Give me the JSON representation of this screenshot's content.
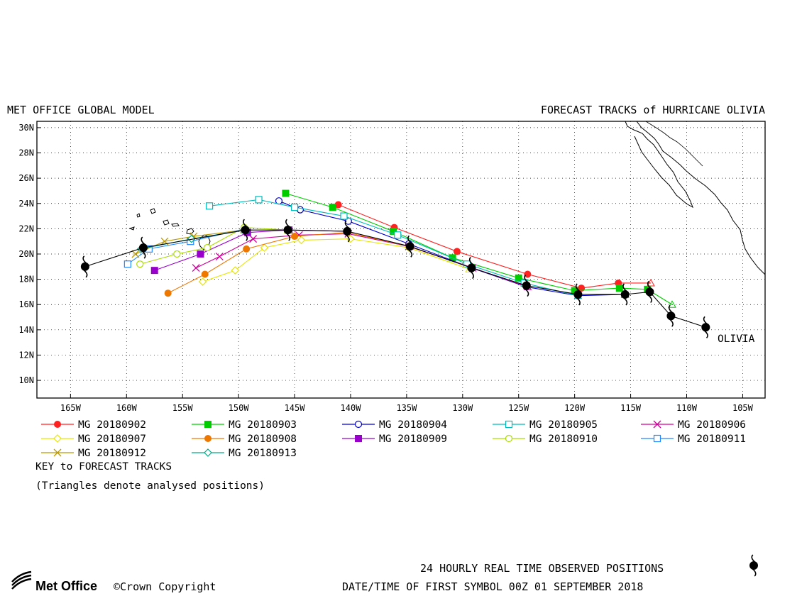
{
  "header": {
    "left": "MET OFFICE GLOBAL MODEL",
    "right": "FORECAST TRACKS of HURRICANE OLIVIA"
  },
  "map": {
    "lon_range": [
      -168,
      -103
    ],
    "lat_range": [
      8.6,
      30.5
    ],
    "lat_ticks": [
      {
        "v": 30,
        "label": "30N"
      },
      {
        "v": 28,
        "label": "28N"
      },
      {
        "v": 26,
        "label": "26N"
      },
      {
        "v": 24,
        "label": "24N"
      },
      {
        "v": 22,
        "label": "22N"
      },
      {
        "v": 20,
        "label": "20N"
      },
      {
        "v": 18,
        "label": "18N"
      },
      {
        "v": 16,
        "label": "16N"
      },
      {
        "v": 14,
        "label": "14N"
      },
      {
        "v": 12,
        "label": "12N"
      },
      {
        "v": 10,
        "label": "10N"
      }
    ],
    "lon_ticks": [
      {
        "v": -165,
        "label": "165W"
      },
      {
        "v": -160,
        "label": "160W"
      },
      {
        "v": -155,
        "label": "155W"
      },
      {
        "v": -150,
        "label": "150W"
      },
      {
        "v": -145,
        "label": "145W"
      },
      {
        "v": -140,
        "label": "140W"
      },
      {
        "v": -135,
        "label": "135W"
      },
      {
        "v": -130,
        "label": "130W"
      },
      {
        "v": -125,
        "label": "125W"
      },
      {
        "v": -120,
        "label": "120W"
      },
      {
        "v": -115,
        "label": "115W"
      },
      {
        "v": -110,
        "label": "110W"
      },
      {
        "v": -105,
        "label": "105W"
      }
    ],
    "storm_label": "OLIVIA",
    "grid": "dotted"
  },
  "observed_track": [
    [
      -108.3,
      14.2
    ],
    [
      -111.4,
      15.1
    ],
    [
      -113.3,
      17.0
    ],
    [
      -115.5,
      16.8
    ],
    [
      -119.7,
      16.8
    ],
    [
      -124.3,
      17.5
    ],
    [
      -129.2,
      18.9
    ],
    [
      -134.7,
      20.6
    ],
    [
      -140.3,
      21.8
    ],
    [
      -145.6,
      21.9
    ],
    [
      -149.4,
      21.9
    ],
    [
      -158.5,
      20.5
    ],
    [
      -163.7,
      19.0
    ]
  ],
  "forecasts": [
    {
      "label": "MG 20180902",
      "color": "#ff2020",
      "marker": "dot",
      "points": [
        [
          -113.2,
          17.7
        ],
        [
          -116.1,
          17.7
        ],
        [
          -119.4,
          17.3
        ],
        [
          -124.2,
          18.4
        ],
        [
          -130.5,
          20.2
        ],
        [
          -136.1,
          22.1
        ],
        [
          -141.1,
          23.9
        ]
      ]
    },
    {
      "label": "MG 20180903",
      "color": "#00cc00",
      "marker": "square",
      "points": [
        [
          -111.3,
          16.0
        ],
        [
          -113.5,
          17.2
        ],
        [
          -116.0,
          17.3
        ],
        [
          -120.0,
          17.1
        ],
        [
          -125.0,
          18.1
        ],
        [
          -130.9,
          19.7
        ],
        [
          -136.2,
          21.8
        ],
        [
          -141.6,
          23.7
        ],
        [
          -145.8,
          24.8
        ]
      ]
    },
    {
      "label": "MG 20180904",
      "color": "#0000cc",
      "marker": "circle",
      "points": [
        [
          -115.5,
          16.8
        ],
        [
          -119.7,
          16.7
        ],
        [
          -124.3,
          17.4
        ],
        [
          -129.2,
          18.9
        ],
        [
          -134.8,
          20.8
        ],
        [
          -140.2,
          22.6
        ],
        [
          -144.5,
          23.5
        ],
        [
          -146.4,
          24.2
        ]
      ]
    },
    {
      "label": "MG 20180905",
      "color": "#00bbbb",
      "marker": "square-open",
      "points": [
        [
          -119.7,
          16.7
        ],
        [
          -124.5,
          17.7
        ],
        [
          -129.6,
          19.2
        ],
        [
          -135.8,
          21.5
        ],
        [
          -140.6,
          23.0
        ],
        [
          -145.0,
          23.7
        ],
        [
          -148.2,
          24.3
        ],
        [
          -152.6,
          23.8
        ]
      ]
    },
    {
      "label": "MG 20180906",
      "color": "#cc0099",
      "marker": "x",
      "points": [
        [
          -124.2,
          17.4
        ],
        [
          -129.1,
          18.9
        ],
        [
          -134.8,
          20.6
        ],
        [
          -140.2,
          21.6
        ],
        [
          -144.6,
          21.5
        ],
        [
          -148.7,
          21.2
        ],
        [
          -151.7,
          19.8
        ],
        [
          -153.8,
          18.9
        ]
      ]
    },
    {
      "label": "MG 20180907",
      "color": "#e6e600",
      "marker": "diamond",
      "points": [
        [
          -129.4,
          18.8
        ],
        [
          -134.8,
          20.5
        ],
        [
          -140.0,
          21.2
        ],
        [
          -144.4,
          21.1
        ],
        [
          -147.7,
          20.5
        ],
        [
          -150.3,
          18.7
        ],
        [
          -153.2,
          17.8
        ]
      ]
    },
    {
      "label": "MG 20180908",
      "color": "#ee7700",
      "marker": "dot",
      "points": [
        [
          -134.7,
          20.6
        ],
        [
          -140.3,
          21.7
        ],
        [
          -145.0,
          21.4
        ],
        [
          -149.3,
          20.4
        ],
        [
          -153.0,
          18.4
        ],
        [
          -156.3,
          16.9
        ]
      ]
    },
    {
      "label": "MG 20180909",
      "color": "#9900cc",
      "marker": "square",
      "points": [
        [
          -140.3,
          21.8
        ],
        [
          -145.5,
          21.9
        ],
        [
          -149.2,
          21.7
        ],
        [
          -153.4,
          20.0
        ],
        [
          -157.5,
          18.7
        ]
      ]
    },
    {
      "label": "MG 20180910",
      "color": "#aadd00",
      "marker": "circle",
      "points": [
        [
          -145.6,
          21.9
        ],
        [
          -149.5,
          22.1
        ],
        [
          -152.8,
          20.5
        ],
        [
          -155.5,
          20.0
        ],
        [
          -158.8,
          19.2
        ]
      ]
    },
    {
      "label": "MG 20180911",
      "color": "#2288ff",
      "marker": "square-open",
      "points": [
        [
          -149.4,
          22.0
        ],
        [
          -154.3,
          21.0
        ],
        [
          -158.0,
          20.4
        ],
        [
          -159.9,
          19.2
        ]
      ]
    },
    {
      "label": "MG 20180912",
      "color": "#bb9900",
      "marker": "x",
      "points": [
        [
          -149.5,
          21.9
        ],
        [
          -154.0,
          21.4
        ],
        [
          -156.6,
          21.0
        ],
        [
          -159.2,
          20.0
        ]
      ]
    },
    {
      "label": "MG 20180913",
      "color": "#00aa88",
      "marker": "diamond",
      "points": [
        [
          -149.4,
          21.9
        ],
        [
          -154.2,
          21.2
        ],
        [
          -158.7,
          20.4
        ]
      ]
    }
  ],
  "legend": {
    "key_title": "KEY to FORECAST TRACKS",
    "key_note": "(Triangles denote analysed positions)"
  },
  "footer": {
    "logo": "Met Office",
    "copyright": "©Crown Copyright",
    "observed_line": "24 HOURLY REAL TIME OBSERVED POSITIONS",
    "datetime_line": "DATE/TIME OF FIRST SYMBOL 00Z 01 SEPTEMBER 2018"
  }
}
